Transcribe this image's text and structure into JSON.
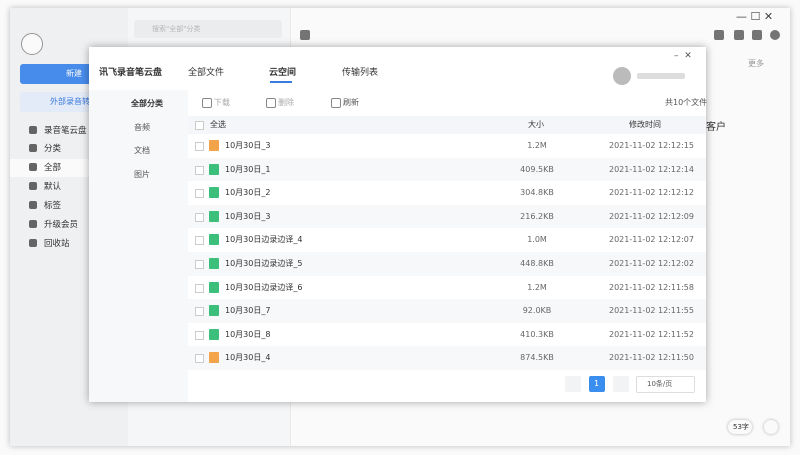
{
  "sidebar": {
    "new_button": "新建",
    "import_button": "外部录音转",
    "items": [
      "录音笔云盘",
      "分类",
      "全部",
      "默认",
      "标签",
      "升级会员",
      "回收站"
    ]
  },
  "search_placeholder": "搜索\"全部\"分类",
  "editor": {
    "more": "更多",
    "fragment": "客户",
    "word_count": "53字"
  },
  "dialog": {
    "title": "讯飞录音笔云盘",
    "tabs": [
      "全部文件",
      "云空间",
      "传输列表"
    ],
    "nav": [
      "全部分类",
      "音频",
      "文档",
      "图片"
    ],
    "toolbar": [
      "下载",
      "删除",
      "刷新"
    ],
    "file_count": "共10个文件",
    "table": {
      "headers": [
        "全选",
        "大小",
        "修改时间"
      ],
      "rows": [
        {
          "name": "10月30日_3",
          "size": "1.2M",
          "modified": "2021-11-02 12:12:15",
          "icon_color": "#f3a34a"
        },
        {
          "name": "10月30日_1",
          "size": "409.5KB",
          "modified": "2021-11-02 12:12:14",
          "icon_color": "#3cbf7a"
        },
        {
          "name": "10月30日_2",
          "size": "304.8KB",
          "modified": "2021-11-02 12:12:12",
          "icon_color": "#3cbf7a"
        },
        {
          "name": "10月30日_3",
          "size": "216.2KB",
          "modified": "2021-11-02 12:12:09",
          "icon_color": "#3cbf7a"
        },
        {
          "name": "10月30日边录边译_4",
          "size": "1.0M",
          "modified": "2021-11-02 12:12:07",
          "icon_color": "#3cbf7a"
        },
        {
          "name": "10月30日边录边译_5",
          "size": "448.8KB",
          "modified": "2021-11-02 12:12:02",
          "icon_color": "#3cbf7a"
        },
        {
          "name": "10月30日边录边译_6",
          "size": "1.2M",
          "modified": "2021-11-02 12:11:58",
          "icon_color": "#3cbf7a"
        },
        {
          "name": "10月30日_7",
          "size": "92.0KB",
          "modified": "2021-11-02 12:11:55",
          "icon_color": "#3cbf7a"
        },
        {
          "name": "10月30日_8",
          "size": "410.3KB",
          "modified": "2021-11-02 12:11:52",
          "icon_color": "#3cbf7a"
        },
        {
          "name": "10月30日_4",
          "size": "874.5KB",
          "modified": "2021-11-02 12:11:50",
          "icon_color": "#f3a34a"
        }
      ]
    },
    "pagination": {
      "current": "1",
      "page_size": "10条/页"
    }
  }
}
